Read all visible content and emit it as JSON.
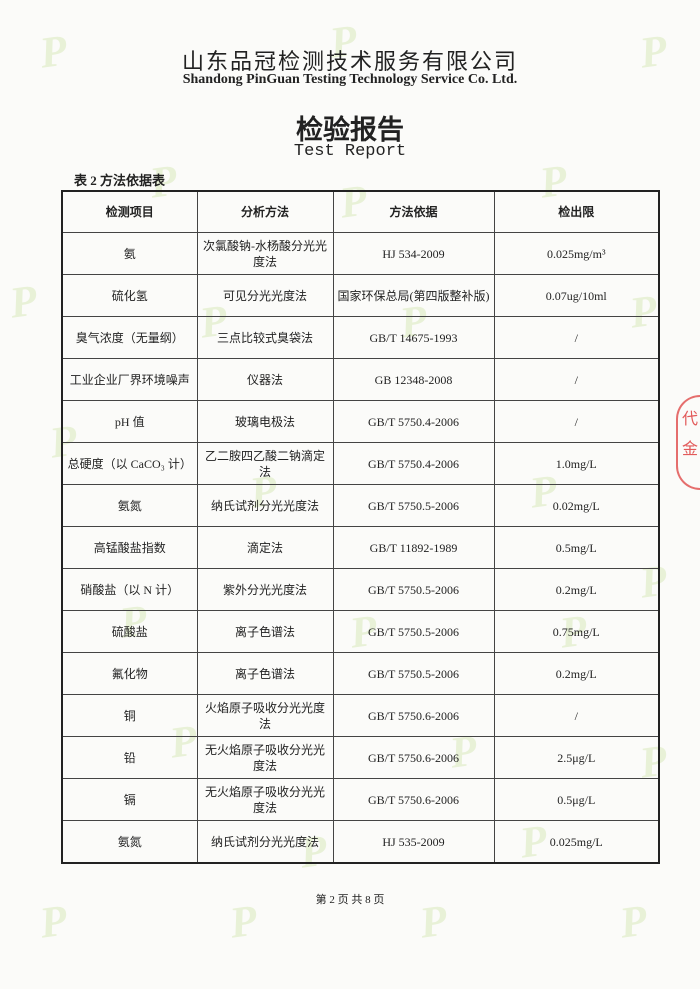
{
  "header": {
    "company_cn": "山东品冠检测技术服务有限公司",
    "company_en": "Shandong PinGuan Testing Technology Service Co. Ltd.",
    "title_cn": "检验报告",
    "title_en": "Test Report"
  },
  "table": {
    "caption": "表 2 方法依据表",
    "columns": [
      "检测项目",
      "分析方法",
      "方法依据",
      "检出限"
    ],
    "rows": [
      [
        "氨",
        "次氯酸钠-水杨酸分光光度法",
        "HJ 534-2009",
        "0.025mg/m³"
      ],
      [
        "硫化氢",
        "可见分光光度法",
        "国家环保总局(第四版整补版)",
        "0.07ug/10ml"
      ],
      [
        "臭气浓度（无量纲）",
        "三点比较式臭袋法",
        "GB/T 14675-1993",
        "/"
      ],
      [
        "工业企业厂界环境噪声",
        "仪器法",
        "GB 12348-2008",
        "/"
      ],
      [
        "pH 值",
        "玻璃电极法",
        "GB/T 5750.4-2006",
        "/"
      ],
      [
        "总硬度（以 CaCO₃ 计）",
        "乙二胺四乙酸二钠滴定法",
        "GB/T 5750.4-2006",
        "1.0mg/L"
      ],
      [
        "氨氮",
        "纳氏试剂分光光度法",
        "GB/T 5750.5-2006",
        "0.02mg/L"
      ],
      [
        "高锰酸盐指数",
        "滴定法",
        "GB/T 11892-1989",
        "0.5mg/L"
      ],
      [
        "硝酸盐（以 N 计）",
        "紫外分光光度法",
        "GB/T 5750.5-2006",
        "0.2mg/L"
      ],
      [
        "硫酸盐",
        "离子色谱法",
        "GB/T 5750.5-2006",
        "0.75mg/L"
      ],
      [
        "氟化物",
        "离子色谱法",
        "GB/T 5750.5-2006",
        "0.2mg/L"
      ],
      [
        "铜",
        "火焰原子吸收分光光度法",
        "GB/T 5750.6-2006",
        "/"
      ],
      [
        "铅",
        "无火焰原子吸收分光光度法",
        "GB/T 5750.6-2006",
        "2.5μg/L"
      ],
      [
        "镉",
        "无火焰原子吸收分光光度法",
        "GB/T 5750.6-2006",
        "0.5μg/L"
      ],
      [
        "氨氮",
        "纳氏试剂分光光度法",
        "HJ 535-2009",
        "0.025mg/L"
      ]
    ]
  },
  "footer": {
    "page": "第 2 页 共 8 页"
  },
  "stamp": {
    "text": "代 金"
  },
  "watermark": {
    "text": "P",
    "color": "#96c83c"
  },
  "colors": {
    "stamp": "#dc3232"
  }
}
